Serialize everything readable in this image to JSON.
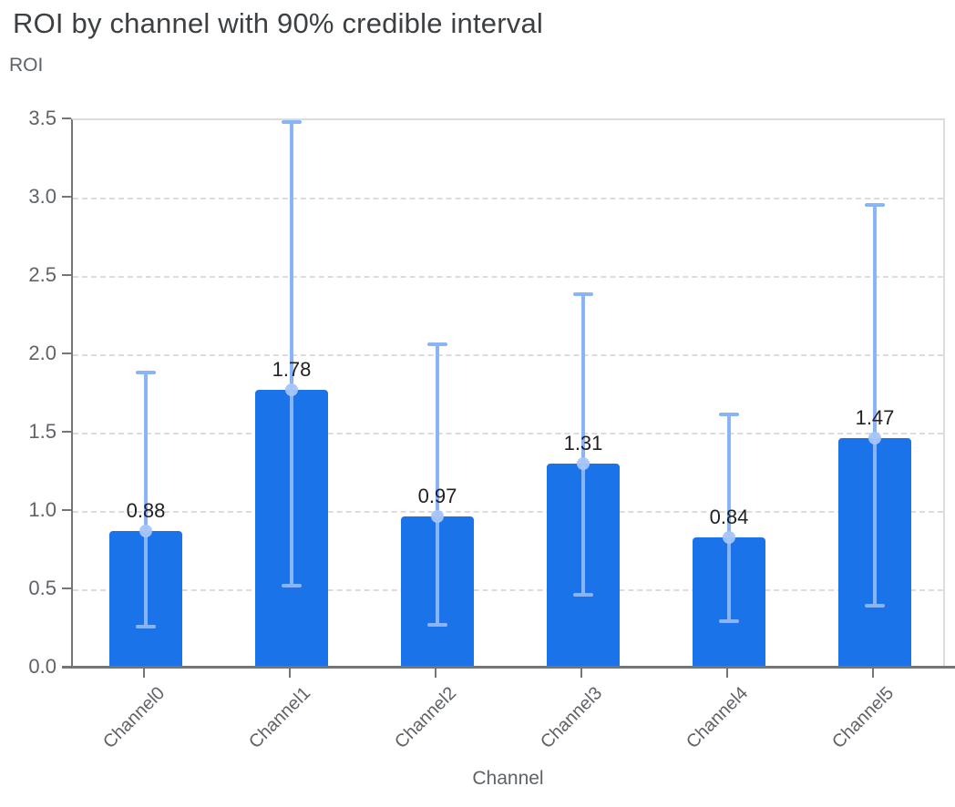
{
  "chart_data": {
    "type": "bar",
    "title": "ROI by channel with 90% credible interval",
    "ylabel": "ROI",
    "xlabel": "Channel",
    "categories": [
      "Channel0",
      "Channel1",
      "Channel2",
      "Channel3",
      "Channel4",
      "Channel5"
    ],
    "series": [
      {
        "name": "ROI",
        "values": [
          0.88,
          1.78,
          0.97,
          1.31,
          0.84,
          1.47
        ],
        "value_labels": [
          "0.88",
          "1.78",
          "0.97",
          "1.31",
          "0.84",
          "1.47"
        ],
        "ci_low": [
          0.27,
          0.53,
          0.28,
          0.47,
          0.3,
          0.4
        ],
        "ci_high": [
          1.89,
          3.49,
          2.07,
          2.39,
          1.62,
          2.96
        ]
      }
    ],
    "error_bars": "90% credible interval",
    "ylim": [
      0,
      3.5
    ],
    "y_ticks": [
      0.0,
      0.5,
      1.0,
      1.5,
      2.0,
      2.5,
      3.0,
      3.5
    ],
    "y_tick_labels": [
      "0.0",
      "0.5",
      "1.0",
      "1.5",
      "2.0",
      "2.5",
      "3.0",
      "3.5"
    ],
    "grid": "horizontal dashed lines every 0.5, on",
    "legend": "none",
    "colors": {
      "bar": "#1a73e8",
      "error_bar": "#8ab4f8",
      "marker": "#a6c5fa",
      "grid": "#dadce0",
      "axis": "#757575",
      "tick_label": "#5f6368",
      "axis_title": "#5f6368",
      "title": "#3c4043",
      "value_label": "#202124"
    }
  }
}
